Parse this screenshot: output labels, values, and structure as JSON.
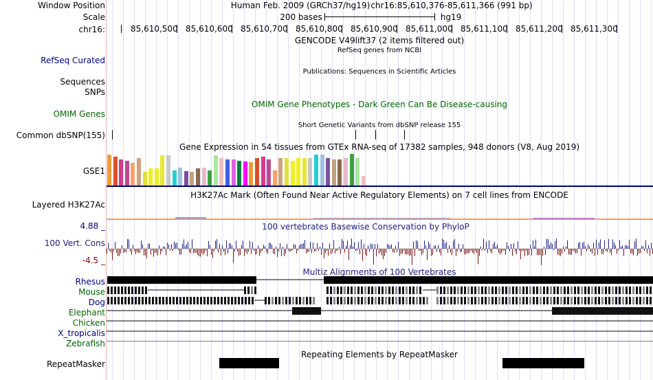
{
  "header": {
    "window_position_label": "Window Position",
    "assembly": "Human Feb. 2009 (GRCh37/hg19)",
    "position": "chr16:85,610,376-85,611,366 (991 bp)",
    "scale_label": "Scale",
    "scale_value": "200 bases",
    "scale_db": "hg19",
    "chrom_label": "chr16:",
    "ruler_ticks": [
      "85,610,500",
      "85,610,600",
      "85,610,700",
      "85,610,800",
      "85,610,900",
      "85,611,000",
      "85,611,100",
      "85,611,200",
      "85,611,300"
    ]
  },
  "tracks": {
    "gencode": {
      "title": "GENCODE V49lift37 (2 items filtered out)"
    },
    "refseq": {
      "label": "RefSeq Curated",
      "title": "RefSeq genes from NCBI"
    },
    "publications": {
      "title": "Publications: Sequences in Scientific Articles"
    },
    "sequences": {
      "label": "Sequences"
    },
    "snps": {
      "label": "SNPs"
    },
    "omim": {
      "label": "OMIM Genes",
      "title": "OMIM Gene Phenotypes - Dark Green Can Be Disease-causing"
    },
    "dbsnp": {
      "label": "Common dbSNP(155)",
      "title": "Short Genetic Variants from dbSNP release 155"
    },
    "gtex": {
      "label": "GSE1",
      "title": "Gene Expression in 54 tissues from GTEx RNA-seq of 17382 samples, 948 donors (V8, Aug 2019)"
    },
    "h3k27ac": {
      "label": "Layered H3K27Ac",
      "title": "H3K27Ac Mark (Often Found Near Active Regulatory Elements) on 7 cell lines from ENCODE"
    },
    "phylop": {
      "label": "100 Vert. Cons",
      "max": "4.88 _",
      "min": "-4.5 _",
      "title": "100 vertebrates Basewise Conservation by PhyloP"
    },
    "multiz": {
      "title": "Multiz Alignments of 100 Vertebrates",
      "species": [
        "Rhesus",
        "Mouse",
        "Dog",
        "Elephant",
        "Chicken",
        "X_tropicalis",
        "Zebrafish"
      ]
    },
    "repeatmasker": {
      "label": "RepeatMasker",
      "title": "Repeating Elements by RepeatMasker"
    }
  },
  "colors": {
    "navy": "#000080",
    "green": "#006400",
    "gtex": [
      "#f09a3a",
      "#d94f2a",
      "#d63a8e",
      "#bb4b8e",
      "#f8a26a",
      "#d0a080",
      "#e0e03a",
      "#f0f020",
      "#f0f020",
      "#e8e830",
      "#c8c8c8",
      "#22d0d0",
      "#a0c0e0",
      "#7a50a0",
      "#c0a080",
      "#8a6a4a",
      "#e8b8c8",
      "#40a040",
      "#a8e8a0",
      "#f0c0c0",
      "#4060e0",
      "#e060e0",
      "#008040",
      "#ff00ff"
    ]
  },
  "gtex_values": [
    45,
    42,
    38,
    36,
    33,
    40,
    20,
    25,
    25,
    44,
    44,
    22,
    26,
    21,
    20,
    25,
    26,
    22,
    44,
    40,
    38,
    38,
    36,
    35,
    34,
    40,
    42,
    38,
    22,
    40,
    40,
    36,
    40,
    40,
    40,
    45,
    45,
    40,
    38,
    38,
    40,
    46,
    40,
    14
  ]
}
